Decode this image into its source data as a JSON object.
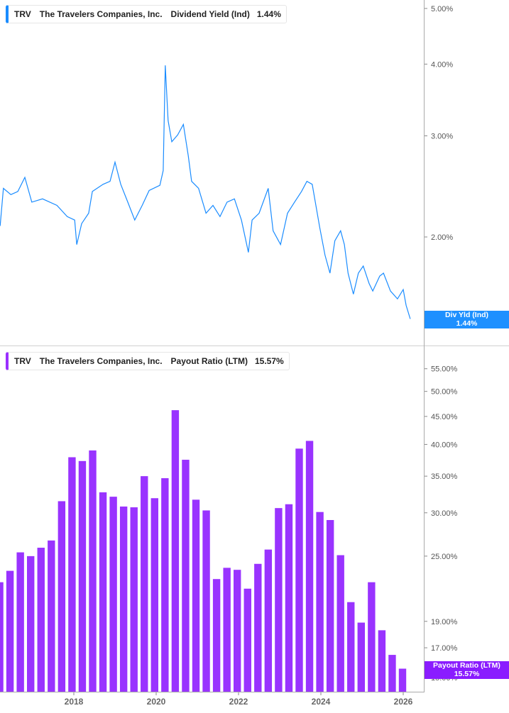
{
  "colors": {
    "yield_line": "#1a8cff",
    "payout_bar": "#9933ff",
    "yield_tag": "#1e90ff",
    "payout_tag": "#8a1cff",
    "axis": "#aaaaaa"
  },
  "top_legend": {
    "ticker": "TRV",
    "company": "The Travelers Companies, Inc.",
    "metric": "Dividend Yield (Ind)",
    "value": "1.44%"
  },
  "bottom_legend": {
    "ticker": "TRV",
    "company": "The Travelers Companies, Inc.",
    "metric": "Payout Ratio (LTM)",
    "value": "15.57%"
  },
  "yield_tag": {
    "label": "Div Yld (Ind)",
    "value": "1.44%"
  },
  "payout_tag": {
    "label": "Payout Ratio (LTM)",
    "value": "15.57%"
  },
  "chart_data": [
    {
      "type": "line",
      "series_name": "Dividend Yield (Ind)",
      "y_scale": "log",
      "ylim": [
        1.4,
        5.2
      ],
      "y_ticks": [
        {
          "value": 5,
          "label": "5.00%"
        },
        {
          "value": 4,
          "label": "4.00%"
        },
        {
          "value": 3,
          "label": "3.00%"
        },
        {
          "value": 2,
          "label": "2.00%"
        }
      ],
      "x_unit": "year",
      "x": [
        2016.21,
        2016.29,
        2016.47,
        2016.64,
        2016.81,
        2016.98,
        2017.24,
        2017.59,
        2017.84,
        2018.02,
        2018.07,
        2018.19,
        2018.36,
        2018.45,
        2018.71,
        2018.88,
        2019.0,
        2019.14,
        2019.31,
        2019.48,
        2019.66,
        2019.83,
        2020.09,
        2020.17,
        2020.22,
        2020.29,
        2020.38,
        2020.52,
        2020.66,
        2020.78,
        2020.86,
        2021.03,
        2021.21,
        2021.38,
        2021.55,
        2021.72,
        2021.9,
        2022.07,
        2022.24,
        2022.33,
        2022.5,
        2022.72,
        2022.84,
        2023.02,
        2023.19,
        2023.36,
        2023.53,
        2023.66,
        2023.79,
        2023.97,
        2024.1,
        2024.22,
        2024.34,
        2024.48,
        2024.57,
        2024.66,
        2024.79,
        2024.91,
        2025.03,
        2025.17,
        2025.26,
        2025.43,
        2025.52,
        2025.69,
        2025.86,
        2026.0,
        2026.07,
        2026.17
      ],
      "values": [
        2.09,
        2.43,
        2.37,
        2.4,
        2.54,
        2.3,
        2.33,
        2.27,
        2.17,
        2.14,
        1.94,
        2.11,
        2.2,
        2.4,
        2.47,
        2.5,
        2.7,
        2.47,
        2.3,
        2.14,
        2.27,
        2.41,
        2.46,
        2.61,
        3.98,
        3.19,
        2.93,
        3.01,
        3.14,
        2.77,
        2.5,
        2.43,
        2.2,
        2.27,
        2.17,
        2.3,
        2.33,
        2.14,
        1.88,
        2.14,
        2.2,
        2.43,
        2.05,
        1.94,
        2.2,
        2.3,
        2.4,
        2.5,
        2.47,
        2.08,
        1.86,
        1.73,
        1.97,
        2.05,
        1.94,
        1.73,
        1.59,
        1.73,
        1.78,
        1.66,
        1.61,
        1.71,
        1.73,
        1.61,
        1.56,
        1.62,
        1.52,
        1.44
      ]
    },
    {
      "type": "bar",
      "series_name": "Payout Ratio (LTM)",
      "y_scale": "log",
      "ylim": [
        14.5,
        60
      ],
      "y_ticks": [
        {
          "value": 55,
          "label": "55.00%"
        },
        {
          "value": 50,
          "label": "50.00%"
        },
        {
          "value": 45,
          "label": "45.00%"
        },
        {
          "value": 40,
          "label": "40.00%"
        },
        {
          "value": 35,
          "label": "35.00%"
        },
        {
          "value": 30,
          "label": "30.00%"
        },
        {
          "value": 25,
          "label": "25.00%"
        },
        {
          "value": 19,
          "label": "19.00%"
        },
        {
          "value": 17,
          "label": "17.00%"
        },
        {
          "value": 15,
          "label": "15.00%"
        }
      ],
      "x_ticks": [
        {
          "value": 2018,
          "label": "2018"
        },
        {
          "value": 2020,
          "label": "2020"
        },
        {
          "value": 2022,
          "label": "2022"
        },
        {
          "value": 2024,
          "label": "2024"
        },
        {
          "value": 2026,
          "label": "2026"
        }
      ],
      "categories": [
        "2016-Q1",
        "2016-Q2",
        "2016-Q3",
        "2016-Q4",
        "2017-Q1",
        "2017-Q2",
        "2017-Q3",
        "2017-Q4",
        "2018-Q1",
        "2018-Q2",
        "2018-Q3",
        "2018-Q4",
        "2019-Q1",
        "2019-Q2",
        "2019-Q3",
        "2019-Q4",
        "2020-Q1",
        "2020-Q2",
        "2020-Q3",
        "2020-Q4",
        "2021-Q1",
        "2021-Q2",
        "2021-Q3",
        "2021-Q4",
        "2022-Q1",
        "2022-Q2",
        "2022-Q3",
        "2022-Q4",
        "2023-Q1",
        "2023-Q2",
        "2023-Q3",
        "2023-Q4",
        "2024-Q1",
        "2024-Q2",
        "2024-Q3",
        "2024-Q4",
        "2025-Q1",
        "2025-Q2",
        "2025-Q3",
        "2025-Q4"
      ],
      "values": [
        22.4,
        23.5,
        25.4,
        25.0,
        25.9,
        26.7,
        31.5,
        37.9,
        37.3,
        39.0,
        32.7,
        32.1,
        30.8,
        30.7,
        35.0,
        31.9,
        34.7,
        46.2,
        37.5,
        31.7,
        30.3,
        22.7,
        23.8,
        23.6,
        21.8,
        24.2,
        25.7,
        30.6,
        31.1,
        39.3,
        40.6,
        30.1,
        29.1,
        25.1,
        20.6,
        18.9,
        22.4,
        18.3,
        16.5,
        15.57
      ]
    }
  ]
}
